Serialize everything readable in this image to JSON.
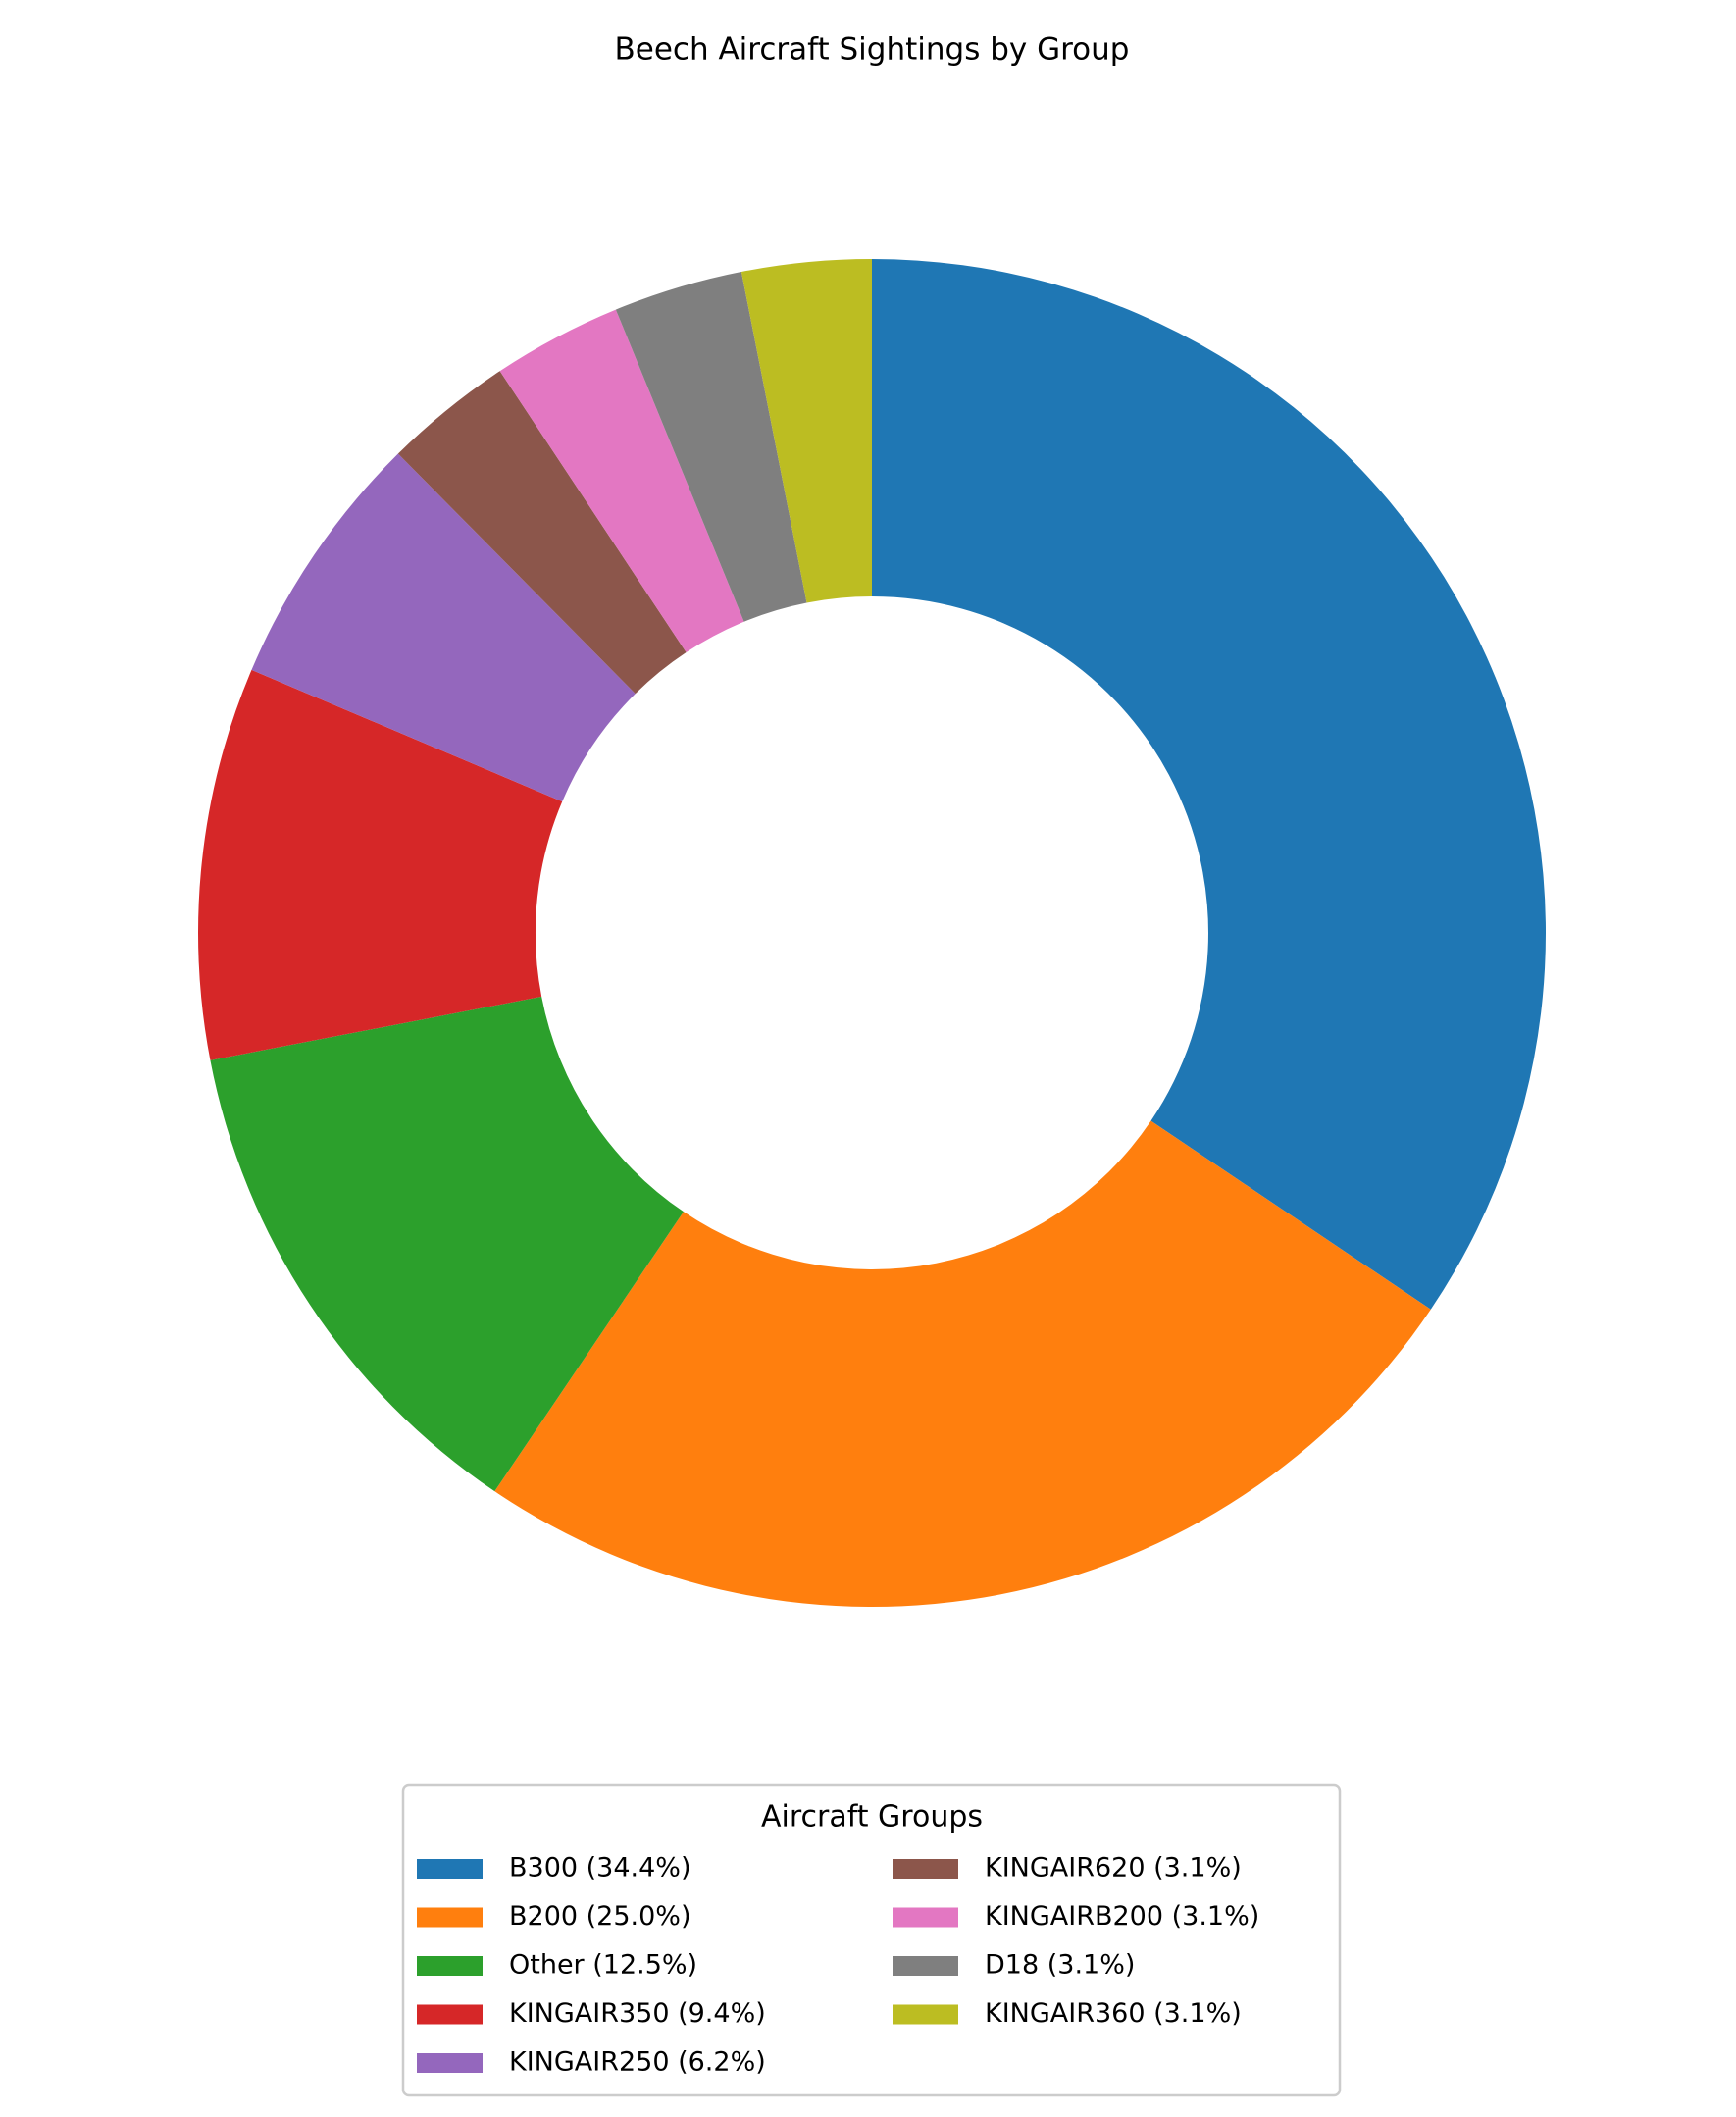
{
  "chart_data": {
    "type": "donut",
    "title": "Beech Aircraft Sightings by Group",
    "legend_title": "Aircraft Groups",
    "categories": [
      "B300 (34.4%)",
      "B200 (25.0%)",
      "Other (12.5%)",
      "KINGAIR350 (9.4%)",
      "KINGAIR250 (6.2%)",
      "KINGAIR620 (3.1%)",
      "KINGAIRB200 (3.1%)",
      "D18 (3.1%)",
      "KINGAIR360 (3.1%)"
    ],
    "values": [
      34.4,
      25.0,
      12.5,
      9.4,
      6.2,
      3.1,
      3.1,
      3.1,
      3.1
    ],
    "colors": [
      "#1f77b4",
      "#ff7f0e",
      "#2ca02c",
      "#d62728",
      "#9467bd",
      "#8c564b",
      "#e377c2",
      "#7f7f7f",
      "#bcbd22"
    ],
    "legend_position": "bottom"
  }
}
